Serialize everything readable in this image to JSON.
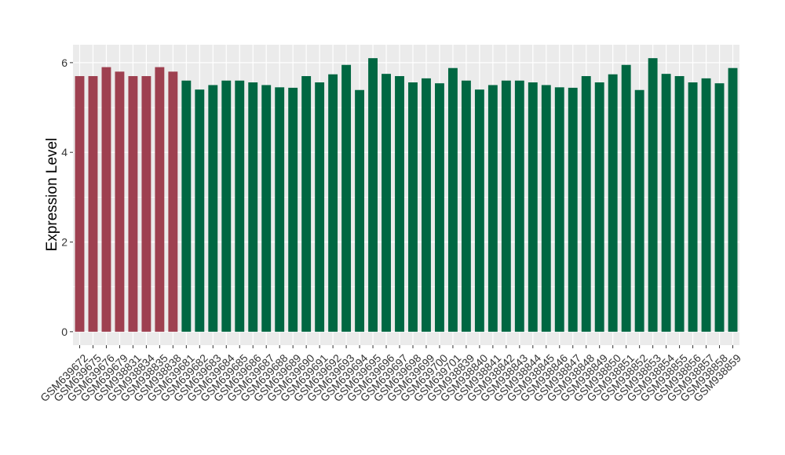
{
  "chart_data": {
    "type": "bar",
    "y_label": "Expression Level",
    "categories": [
      "GSM639672",
      "GSM639675",
      "GSM639676",
      "GSM639679",
      "GSM938831",
      "GSM938834",
      "GSM938835",
      "GSM938838",
      "GSM639681",
      "GSM639682",
      "GSM639683",
      "GSM639684",
      "GSM639685",
      "GSM639686",
      "GSM639687",
      "GSM639688",
      "GSM639689",
      "GSM639690",
      "GSM639691",
      "GSM639692",
      "GSM639693",
      "GSM639694",
      "GSM639695",
      "GSM639696",
      "GSM639697",
      "GSM639698",
      "GSM639699",
      "GSM639700",
      "GSM639701",
      "GSM938839",
      "GSM938840",
      "GSM938841",
      "GSM938842",
      "GSM938843",
      "GSM938844",
      "GSM938845",
      "GSM938846",
      "GSM938847",
      "GSM938848",
      "GSM938849",
      "GSM938850",
      "GSM938851",
      "GSM938852",
      "GSM938853",
      "GSM938854",
      "GSM938855",
      "GSM938856",
      "GSM938857",
      "GSM938858",
      "GSM938859"
    ],
    "values": [
      5.7,
      5.7,
      5.9,
      5.8,
      5.7,
      5.7,
      5.9,
      5.8,
      5.6,
      5.4,
      5.5,
      5.6,
      5.6,
      5.56,
      5.5,
      5.45,
      5.44,
      5.7,
      5.56,
      5.74,
      5.95,
      5.39,
      6.1,
      5.75,
      5.7,
      5.56,
      5.65,
      5.54,
      5.88,
      5.6,
      5.4,
      5.5,
      5.6,
      5.6,
      5.56,
      5.5,
      5.45,
      5.44,
      5.7,
      5.56,
      5.74,
      5.95,
      5.39,
      6.1,
      5.75,
      5.7,
      5.56,
      5.65,
      5.54,
      5.88
    ],
    "bar_colors": [
      "#9e4050",
      "#9e4050",
      "#9e4050",
      "#9e4050",
      "#9e4050",
      "#9e4050",
      "#9e4050",
      "#9e4050",
      "#006742",
      "#006742",
      "#006742",
      "#006742",
      "#006742",
      "#006742",
      "#006742",
      "#006742",
      "#006742",
      "#006742",
      "#006742",
      "#006742",
      "#006742",
      "#006742",
      "#006742",
      "#006742",
      "#006742",
      "#006742",
      "#006742",
      "#006742",
      "#006742",
      "#006742",
      "#006742",
      "#006742",
      "#006742",
      "#006742",
      "#006742",
      "#006742",
      "#006742",
      "#006742",
      "#006742",
      "#006742",
      "#006742",
      "#006742",
      "#006742",
      "#006742",
      "#006742",
      "#006742",
      "#006742",
      "#006742",
      "#006742",
      "#006742"
    ],
    "ylim": [
      -0.3,
      6.4
    ],
    "yticks": [
      0,
      2,
      4,
      6
    ],
    "grid": true
  }
}
